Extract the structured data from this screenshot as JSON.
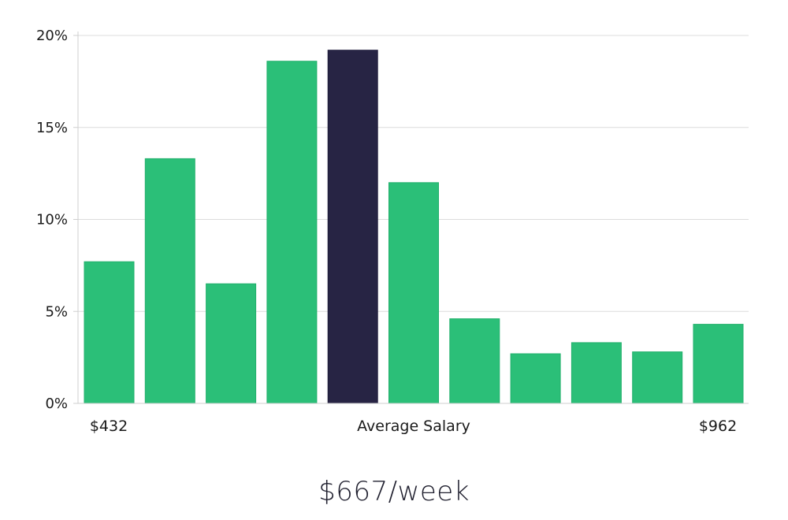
{
  "chart_data": {
    "type": "bar",
    "y_ticks": [
      "0%",
      "5%",
      "10%",
      "15%",
      "20%"
    ],
    "ylim": [
      0,
      20
    ],
    "grid": true,
    "values": [
      7.7,
      13.3,
      6.5,
      18.6,
      19.2,
      12.0,
      4.6,
      2.7,
      3.3,
      2.8,
      4.3
    ],
    "highlight_index": 4,
    "x_labels": {
      "left": "$432",
      "center": "Average Salary",
      "right": "$962"
    },
    "colors": {
      "bar": "#2bbf78",
      "highlight": "#272444",
      "grid": "#dcdcdc"
    }
  },
  "summary": {
    "average": "$667/week"
  }
}
